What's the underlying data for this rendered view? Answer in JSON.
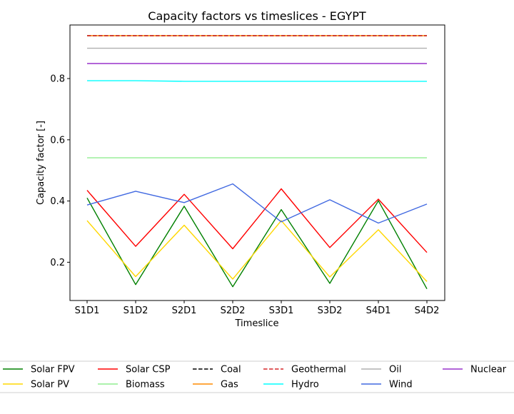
{
  "chart_data": {
    "type": "line",
    "title": "Capacity factors vs timeslices - EGYPT",
    "xlabel": "Timeslice",
    "ylabel": "Capacity factor [-]",
    "categories": [
      "S1D1",
      "S1D2",
      "S2D1",
      "S2D2",
      "S3D1",
      "S3D2",
      "S4D1",
      "S4D2"
    ],
    "ylim": [
      0.075,
      0.975
    ],
    "yticks": [
      0.2,
      0.4,
      0.6,
      0.8
    ],
    "grid": false,
    "legend_position": "bottom",
    "series": [
      {
        "name": "Solar FPV",
        "color": "#008000",
        "dash": "solid",
        "values": [
          0.41,
          0.127,
          0.383,
          0.12,
          0.372,
          0.131,
          0.401,
          0.113
        ]
      },
      {
        "name": "Solar PV",
        "color": "#ffd700",
        "dash": "solid",
        "values": [
          0.336,
          0.153,
          0.321,
          0.145,
          0.336,
          0.152,
          0.306,
          0.137
        ]
      },
      {
        "name": "Solar CSP",
        "color": "#ff0000",
        "dash": "solid",
        "values": [
          0.435,
          0.252,
          0.422,
          0.244,
          0.44,
          0.248,
          0.406,
          0.232
        ]
      },
      {
        "name": "Biomass",
        "color": "#90ee90",
        "dash": "solid",
        "values": [
          0.541,
          0.541,
          0.541,
          0.541,
          0.541,
          0.541,
          0.541,
          0.541
        ]
      },
      {
        "name": "Coal",
        "color": "#000000",
        "dash": "dashed",
        "values": [
          0.94,
          0.94,
          0.94,
          0.94,
          0.94,
          0.94,
          0.94,
          0.94
        ]
      },
      {
        "name": "Gas",
        "color": "#ff8c00",
        "dash": "solid",
        "values": [
          0.94,
          0.94,
          0.94,
          0.94,
          0.94,
          0.94,
          0.94,
          0.94
        ]
      },
      {
        "name": "Geothermal",
        "color": "#d62728",
        "dash": "dashed",
        "values": [
          0.94,
          0.94,
          0.94,
          0.94,
          0.94,
          0.94,
          0.94,
          0.94
        ]
      },
      {
        "name": "Hydro",
        "color": "#00ffff",
        "dash": "solid",
        "values": [
          0.793,
          0.793,
          0.791,
          0.791,
          0.791,
          0.791,
          0.791,
          0.791
        ]
      },
      {
        "name": "Oil",
        "color": "#b0b0b0",
        "dash": "solid",
        "values": [
          0.899,
          0.899,
          0.899,
          0.899,
          0.899,
          0.899,
          0.899,
          0.899
        ]
      },
      {
        "name": "Wind",
        "color": "#4169e1",
        "dash": "solid",
        "values": [
          0.387,
          0.432,
          0.395,
          0.456,
          0.332,
          0.404,
          0.328,
          0.39
        ]
      },
      {
        "name": "Nuclear",
        "color": "#9932cc",
        "dash": "solid",
        "values": [
          0.849,
          0.849,
          0.849,
          0.849,
          0.849,
          0.849,
          0.849,
          0.849
        ]
      }
    ]
  }
}
